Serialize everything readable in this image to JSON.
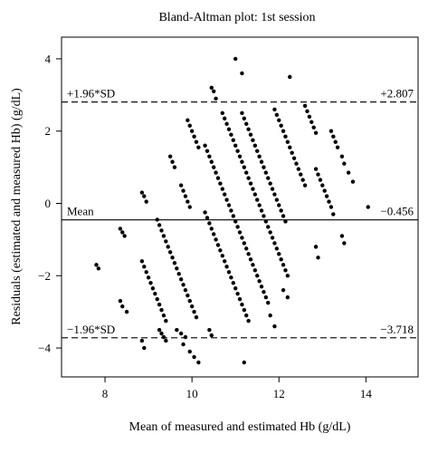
{
  "chart_data": {
    "type": "scatter",
    "title": "Bland-Altman plot: 1st session",
    "xlabel": "Mean of measured and estimated Hb (g/dL)",
    "ylabel": "Residuals (estimated and measured Hb) (g/dL)",
    "xlim": [
      7,
      15.2
    ],
    "ylim": [
      -4.8,
      4.6
    ],
    "xticks": [
      8,
      10,
      12,
      14
    ],
    "yticks": [
      -4,
      -2,
      0,
      2,
      4
    ],
    "reference_lines": [
      {
        "label": "+1.96*SD",
        "value_text": "+2.807",
        "y": 2.807,
        "style": "dashed"
      },
      {
        "label": "Mean",
        "value_text": "−0.456",
        "y": -0.456,
        "style": "solid"
      },
      {
        "label": "−1.96*SD",
        "value_text": "−3.718",
        "y": -3.718,
        "style": "dashed"
      }
    ],
    "series": [
      {
        "points": [
          [
            7.8,
            -1.7
          ],
          [
            7.85,
            -1.8
          ],
          [
            8.35,
            -0.7
          ],
          [
            8.4,
            -0.8
          ],
          [
            8.45,
            -0.9
          ],
          [
            8.35,
            -2.7
          ],
          [
            8.4,
            -2.85
          ],
          [
            8.5,
            -3.0
          ],
          [
            8.85,
            0.3
          ],
          [
            8.9,
            0.2
          ],
          [
            8.95,
            0.05
          ],
          [
            8.85,
            -1.6
          ],
          [
            8.9,
            -1.75
          ],
          [
            8.95,
            -1.9
          ],
          [
            9.0,
            -2.05
          ],
          [
            9.05,
            -2.2
          ],
          [
            9.1,
            -2.35
          ],
          [
            9.15,
            -2.5
          ],
          [
            9.2,
            -2.65
          ],
          [
            9.25,
            -2.8
          ],
          [
            9.3,
            -2.95
          ],
          [
            9.35,
            -3.1
          ],
          [
            9.4,
            -3.25
          ],
          [
            8.85,
            -3.8
          ],
          [
            8.9,
            -4.0
          ],
          [
            9.2,
            -0.45
          ],
          [
            9.25,
            -0.6
          ],
          [
            9.3,
            -0.75
          ],
          [
            9.35,
            -0.9
          ],
          [
            9.4,
            -1.05
          ],
          [
            9.45,
            -1.2
          ],
          [
            9.5,
            -1.35
          ],
          [
            9.55,
            -1.5
          ],
          [
            9.6,
            -1.65
          ],
          [
            9.65,
            -1.8
          ],
          [
            9.7,
            -1.95
          ],
          [
            9.75,
            -2.1
          ],
          [
            9.8,
            -2.25
          ],
          [
            9.85,
            -2.4
          ],
          [
            9.9,
            -2.55
          ],
          [
            9.95,
            -2.7
          ],
          [
            10.0,
            -2.85
          ],
          [
            10.05,
            -3.0
          ],
          [
            10.1,
            -3.15
          ],
          [
            9.25,
            -3.5
          ],
          [
            9.3,
            -3.6
          ],
          [
            9.35,
            -3.7
          ],
          [
            9.4,
            -3.8
          ],
          [
            9.5,
            1.3
          ],
          [
            9.55,
            1.15
          ],
          [
            9.6,
            1.0
          ],
          [
            9.75,
            0.5
          ],
          [
            9.8,
            0.35
          ],
          [
            9.85,
            0.2
          ],
          [
            9.9,
            0.05
          ],
          [
            9.95,
            -0.1
          ],
          [
            9.65,
            -3.5
          ],
          [
            9.75,
            -3.6
          ],
          [
            9.85,
            -3.7
          ],
          [
            9.9,
            2.3
          ],
          [
            9.95,
            2.15
          ],
          [
            10.0,
            2.0
          ],
          [
            10.05,
            1.85
          ],
          [
            10.1,
            1.7
          ],
          [
            10.15,
            1.55
          ],
          [
            9.8,
            -3.9
          ],
          [
            9.95,
            -4.1
          ],
          [
            10.05,
            -4.25
          ],
          [
            10.15,
            -4.4
          ],
          [
            10.3,
            1.6
          ],
          [
            10.35,
            1.45
          ],
          [
            10.4,
            1.3
          ],
          [
            10.45,
            1.15
          ],
          [
            10.5,
            1.0
          ],
          [
            10.55,
            0.85
          ],
          [
            10.6,
            0.7
          ],
          [
            10.65,
            0.55
          ],
          [
            10.7,
            0.4
          ],
          [
            10.75,
            0.25
          ],
          [
            10.8,
            0.1
          ],
          [
            10.85,
            -0.05
          ],
          [
            10.9,
            -0.2
          ],
          [
            10.95,
            -0.35
          ],
          [
            11.0,
            -0.5
          ],
          [
            11.05,
            -0.65
          ],
          [
            11.1,
            -0.8
          ],
          [
            11.15,
            -0.95
          ],
          [
            11.2,
            -1.1
          ],
          [
            11.25,
            -1.25
          ],
          [
            11.3,
            -1.4
          ],
          [
            11.35,
            -1.55
          ],
          [
            11.4,
            -1.7
          ],
          [
            11.45,
            -1.85
          ],
          [
            11.5,
            -2.0
          ],
          [
            11.55,
            -2.15
          ],
          [
            11.6,
            -2.3
          ],
          [
            11.65,
            -2.45
          ],
          [
            11.7,
            -2.6
          ],
          [
            11.75,
            -2.75
          ],
          [
            10.3,
            -0.25
          ],
          [
            10.35,
            -0.4
          ],
          [
            10.4,
            -0.55
          ],
          [
            10.45,
            -0.7
          ],
          [
            10.5,
            -0.85
          ],
          [
            10.55,
            -1.0
          ],
          [
            10.6,
            -1.15
          ],
          [
            10.65,
            -1.3
          ],
          [
            10.7,
            -1.45
          ],
          [
            10.75,
            -1.6
          ],
          [
            10.8,
            -1.75
          ],
          [
            10.85,
            -1.9
          ],
          [
            10.9,
            -2.05
          ],
          [
            10.95,
            -2.2
          ],
          [
            11.0,
            -2.35
          ],
          [
            11.05,
            -2.5
          ],
          [
            11.1,
            -2.65
          ],
          [
            11.15,
            -2.8
          ],
          [
            11.2,
            -2.95
          ],
          [
            11.25,
            -3.1
          ],
          [
            11.3,
            -3.25
          ],
          [
            10.4,
            -3.5
          ],
          [
            10.45,
            -3.65
          ],
          [
            10.45,
            3.2
          ],
          [
            10.5,
            3.1
          ],
          [
            10.55,
            2.9
          ],
          [
            10.7,
            2.5
          ],
          [
            10.75,
            2.35
          ],
          [
            10.8,
            2.2
          ],
          [
            10.85,
            2.05
          ],
          [
            10.9,
            1.9
          ],
          [
            10.95,
            1.75
          ],
          [
            11.0,
            1.6
          ],
          [
            11.05,
            1.45
          ],
          [
            11.1,
            1.3
          ],
          [
            11.15,
            1.15
          ],
          [
            11.2,
            1.0
          ],
          [
            11.25,
            0.85
          ],
          [
            11.3,
            0.7
          ],
          [
            11.35,
            0.55
          ],
          [
            11.4,
            0.4
          ],
          [
            11.45,
            0.25
          ],
          [
            11.5,
            0.1
          ],
          [
            11.55,
            -0.05
          ],
          [
            11.6,
            -0.2
          ],
          [
            11.65,
            -0.35
          ],
          [
            11.7,
            -0.5
          ],
          [
            11.75,
            -0.65
          ],
          [
            11.8,
            -0.8
          ],
          [
            11.85,
            -0.95
          ],
          [
            11.9,
            -1.1
          ],
          [
            11.95,
            -1.25
          ],
          [
            12.0,
            -1.4
          ],
          [
            12.05,
            -1.55
          ],
          [
            12.1,
            -1.7
          ],
          [
            12.15,
            -1.85
          ],
          [
            12.2,
            -2.0
          ],
          [
            11.15,
            2.5
          ],
          [
            11.2,
            2.35
          ],
          [
            11.25,
            2.2
          ],
          [
            11.3,
            2.05
          ],
          [
            11.35,
            1.9
          ],
          [
            11.4,
            1.75
          ],
          [
            11.45,
            1.6
          ],
          [
            11.5,
            1.45
          ],
          [
            11.55,
            1.3
          ],
          [
            11.6,
            1.15
          ],
          [
            11.65,
            1.0
          ],
          [
            11.7,
            0.85
          ],
          [
            11.75,
            0.7
          ],
          [
            11.8,
            0.55
          ],
          [
            11.85,
            0.4
          ],
          [
            11.9,
            0.25
          ],
          [
            11.95,
            0.1
          ],
          [
            12.0,
            -0.05
          ],
          [
            12.05,
            -0.2
          ],
          [
            12.1,
            -0.35
          ],
          [
            12.15,
            -0.5
          ],
          [
            11.0,
            4.0
          ],
          [
            11.15,
            3.6
          ],
          [
            12.25,
            3.5
          ],
          [
            11.2,
            -4.4
          ],
          [
            11.8,
            -3.1
          ],
          [
            11.9,
            -3.4
          ],
          [
            11.9,
            2.6
          ],
          [
            11.95,
            2.45
          ],
          [
            12.0,
            2.3
          ],
          [
            12.05,
            2.15
          ],
          [
            12.1,
            2.0
          ],
          [
            12.15,
            1.85
          ],
          [
            12.2,
            1.7
          ],
          [
            12.25,
            1.55
          ],
          [
            12.3,
            1.4
          ],
          [
            12.35,
            1.25
          ],
          [
            12.4,
            1.1
          ],
          [
            12.45,
            0.95
          ],
          [
            12.5,
            0.8
          ],
          [
            12.55,
            0.65
          ],
          [
            12.6,
            0.5
          ],
          [
            12.1,
            -2.4
          ],
          [
            12.2,
            -2.6
          ],
          [
            12.6,
            2.7
          ],
          [
            12.65,
            2.55
          ],
          [
            12.7,
            2.4
          ],
          [
            12.75,
            2.25
          ],
          [
            12.8,
            2.1
          ],
          [
            12.85,
            1.95
          ],
          [
            12.85,
            0.95
          ],
          [
            12.9,
            0.8
          ],
          [
            12.95,
            0.65
          ],
          [
            13.0,
            0.5
          ],
          [
            13.05,
            0.35
          ],
          [
            13.1,
            0.2
          ],
          [
            13.15,
            0.05
          ],
          [
            13.2,
            -0.1
          ],
          [
            13.25,
            -0.3
          ],
          [
            12.85,
            -1.2
          ],
          [
            12.9,
            -1.5
          ],
          [
            13.2,
            2.0
          ],
          [
            13.25,
            1.85
          ],
          [
            13.3,
            1.7
          ],
          [
            13.35,
            1.55
          ],
          [
            13.45,
            1.3
          ],
          [
            13.5,
            1.1
          ],
          [
            13.6,
            0.85
          ],
          [
            13.7,
            0.6
          ],
          [
            13.45,
            -0.9
          ],
          [
            13.5,
            -1.1
          ],
          [
            14.05,
            -0.1
          ]
        ]
      }
    ]
  }
}
